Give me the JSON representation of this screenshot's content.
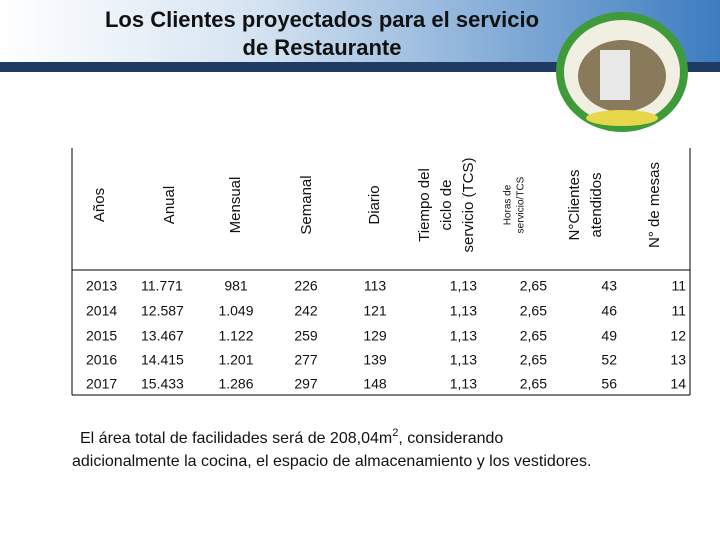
{
  "header": {
    "title": [
      "Los Clientes proyectados para el servicio",
      "de Restaurante"
    ]
  },
  "table": {
    "headers": [
      [
        "Años"
      ],
      [
        "Anual"
      ],
      [
        "Mensual"
      ],
      [
        "Semanal"
      ],
      [
        "Diario"
      ],
      [
        "Tiempo del",
        "ciclo de",
        "servicio (TCS)"
      ],
      [
        "Horas de",
        "servicio/TCS"
      ],
      [
        "N°Clientes",
        "atendidos"
      ],
      [
        "N° de mesas"
      ]
    ],
    "rows": [
      [
        "2013",
        "11.771",
        "981",
        "226",
        "113",
        "1,13",
        "2,65",
        "43",
        "11"
      ],
      [
        "2014",
        "12.587",
        "1.049",
        "242",
        "121",
        "1,13",
        "2,65",
        "46",
        "11"
      ],
      [
        "2015",
        "13.467",
        "1.122",
        "259",
        "129",
        "1,13",
        "2,65",
        "49",
        "12"
      ],
      [
        "2016",
        "14.415",
        "1.201",
        "277",
        "139",
        "1,13",
        "2,65",
        "52",
        "13"
      ],
      [
        "2017",
        "15.433",
        "1.286",
        "297",
        "148",
        "1,13",
        "2,65",
        "56",
        "14"
      ]
    ]
  },
  "note": {
    "line1": "El área total de facilidades será de 208,04m",
    "sup": "2",
    "line1_end": ", considerando",
    "line2": "adicionalmente la cocina, el espacio de almacenamiento y los vestidores."
  }
}
